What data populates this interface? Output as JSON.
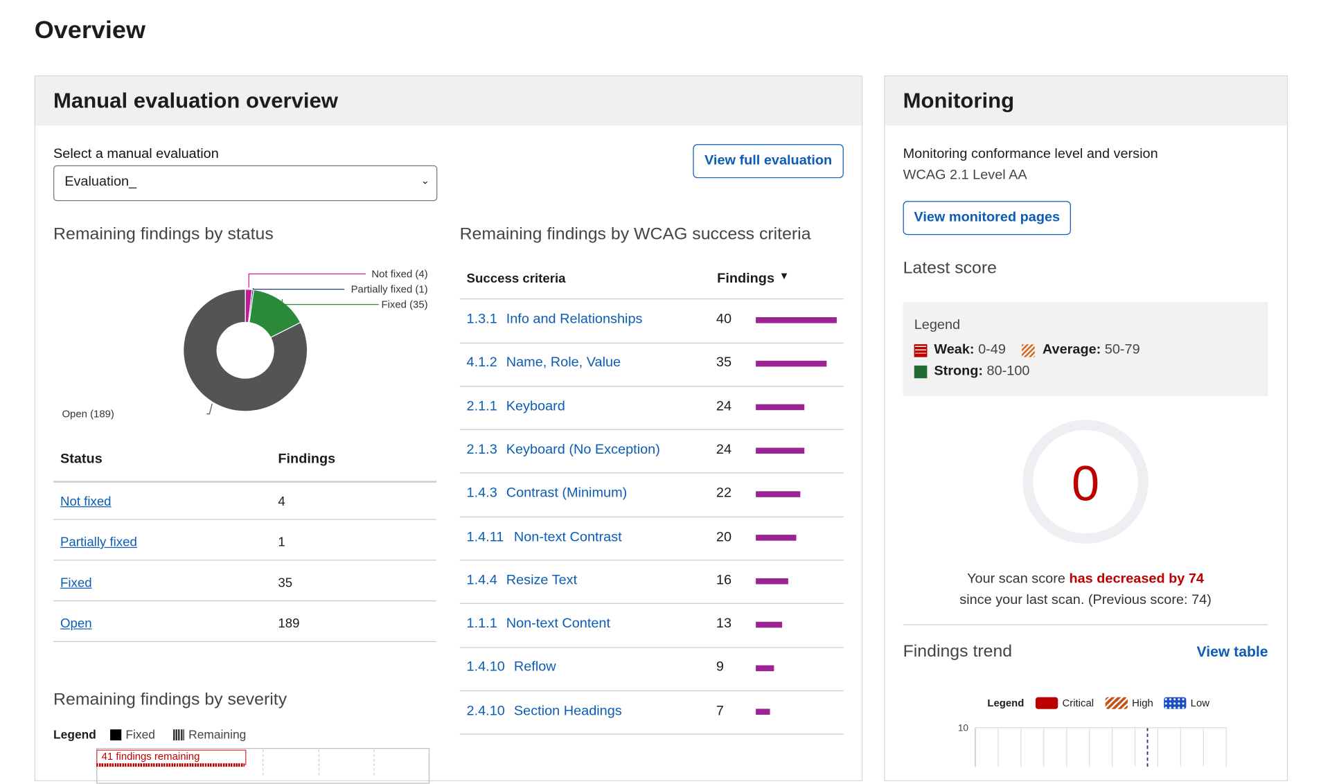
{
  "header": {
    "title": "Overview"
  },
  "manual": {
    "title": "Manual evaluation overview",
    "select_label": "Select a manual evaluation",
    "select_value": "Evaluation_",
    "view_button": "View full evaluation",
    "status_chart": {
      "type": "pie",
      "title": "Remaining findings by status",
      "categories": [
        "Not fixed",
        "Partially fixed",
        "Fixed",
        "Open"
      ],
      "values": [
        4,
        1,
        35,
        189
      ],
      "value_labels": [
        "Not fixed (4)",
        "Partially fixed (1)",
        "Fixed (35)",
        "Open (189)"
      ],
      "colors": [
        "#c21a93",
        "#1f3d7a",
        "#2a8a3a",
        "#545454"
      ]
    },
    "status_table": {
      "headers": [
        "Status",
        "Findings"
      ],
      "rows": [
        [
          "Not fixed",
          4
        ],
        [
          "Partially fixed",
          1
        ],
        [
          "Fixed",
          35
        ],
        [
          "Open",
          189
        ]
      ]
    },
    "criteria_chart": {
      "type": "bar",
      "title": "Remaining findings by WCAG success criteria",
      "headers": [
        "Success criteria",
        "Findings"
      ],
      "ids": [
        "1.3.1",
        "4.1.2",
        "2.1.1",
        "2.1.3",
        "1.4.3",
        "1.4.11",
        "1.4.4",
        "1.1.1",
        "1.4.10",
        "2.4.10"
      ],
      "categories": [
        "Info and Relationships",
        "Name, Role, Value",
        "Keyboard",
        "Keyboard (No Exception)",
        "Contrast (Minimum)",
        "Non-text Contrast",
        "Resize Text",
        "Non-text Content",
        "Reflow",
        "Section Headings"
      ],
      "values": [
        40,
        35,
        24,
        24,
        22,
        20,
        16,
        13,
        9,
        7
      ],
      "color": "#9b2393"
    },
    "severity": {
      "title": "Remaining findings by severity",
      "legend_title": "Legend",
      "legend": [
        "Fixed",
        "Remaining"
      ],
      "annotation": "41 findings remaining"
    }
  },
  "monitoring": {
    "title": "Monitoring",
    "conformance_label": "Monitoring conformance level and version",
    "conformance_value": "WCAG 2.1 Level AA",
    "button": "View monitored pages",
    "latest_score": "Latest score",
    "legend": {
      "title": "Legend",
      "items": [
        {
          "name": "Weak:",
          "range": "0-49"
        },
        {
          "name": "Average:",
          "range": "50-79"
        },
        {
          "name": "Strong:",
          "range": "80-100"
        }
      ]
    },
    "score": 0,
    "score_message": {
      "prefix": "Your scan score",
      "highlight": "has decreased by 74",
      "suffix": "since your last scan. (Previous score: 74)"
    },
    "trend": {
      "title": "Findings trend",
      "link": "View table",
      "legend_title": "Legend",
      "legend": [
        "Critical",
        "High",
        "Low"
      ],
      "yticks": [
        10
      ]
    }
  }
}
